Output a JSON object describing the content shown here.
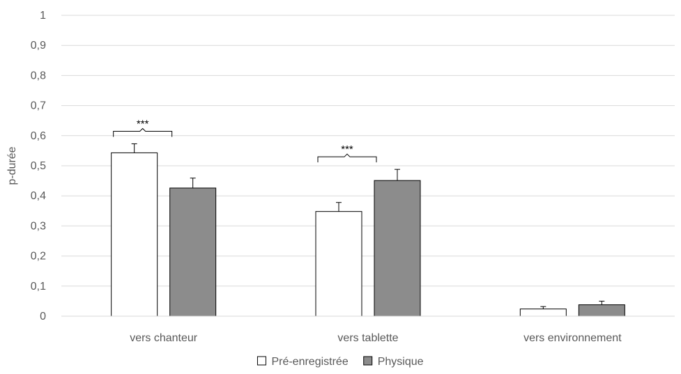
{
  "chart_data": {
    "type": "bar",
    "ylabel": "p-durée",
    "ylim": [
      0,
      1
    ],
    "yticks": [
      0,
      0.1,
      0.2,
      0.3,
      0.4,
      0.5,
      0.6,
      0.7,
      0.8,
      0.9,
      1
    ],
    "ytick_labels": [
      "0",
      "0,1",
      "0,2",
      "0,3",
      "0,4",
      "0,5",
      "0,6",
      "0,7",
      "0,8",
      "0,9",
      "1"
    ],
    "categories": [
      "vers chanteur",
      "vers tablette",
      "vers environnement"
    ],
    "series": [
      {
        "name": "Pré-enregistrée",
        "values": [
          0.543,
          0.348,
          0.024
        ],
        "errors": [
          0.03,
          0.03,
          0.008
        ],
        "color": "#ffffff"
      },
      {
        "name": "Physique",
        "values": [
          0.426,
          0.451,
          0.038
        ],
        "errors": [
          0.033,
          0.037,
          0.012
        ],
        "color": "#8c8c8c"
      }
    ],
    "significance": [
      {
        "category_index": 0,
        "label": "***"
      },
      {
        "category_index": 1,
        "label": "***"
      }
    ],
    "grid": true,
    "legend_position": "bottom"
  }
}
